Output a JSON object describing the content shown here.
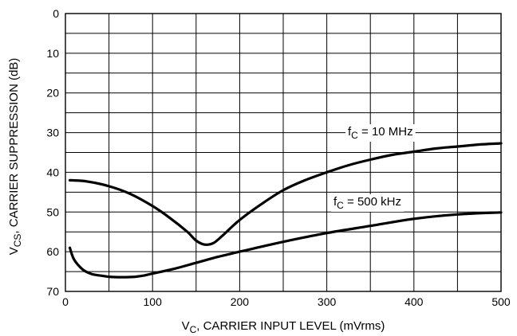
{
  "chart_data": {
    "type": "line",
    "xlabel_main": "V",
    "xlabel_sub": "C",
    "xlabel_rest": ", CARRIER INPUT LEVEL (mVrms)",
    "ylabel_main": "V",
    "ylabel_sub": "CS",
    "ylabel_rest": ", CARRIER SUPPRESSION (dB)",
    "xlim": [
      0,
      500
    ],
    "ylim": [
      0,
      70
    ],
    "y_inverted": true,
    "grid": true,
    "x_ticks": [
      "0",
      "100",
      "200",
      "300",
      "400",
      "500"
    ],
    "y_ticks": [
      "0",
      "10",
      "20",
      "30",
      "40",
      "50",
      "60",
      "70"
    ],
    "series": [
      {
        "label_main": "f",
        "label_sub": "C",
        "label_rest": " = 10 MHz",
        "x": [
          5,
          25,
          50,
          75,
          100,
          120,
          140,
          150,
          160,
          170,
          180,
          200,
          225,
          250,
          275,
          300,
          325,
          350,
          375,
          400,
          425,
          450,
          475,
          500
        ],
        "y": [
          42,
          42.3,
          43.5,
          45.5,
          48.5,
          51.5,
          55,
          57.2,
          58.2,
          57.8,
          56,
          52,
          48,
          44.5,
          42,
          40,
          38.2,
          36.8,
          35.6,
          34.8,
          34,
          33.5,
          33,
          32.7
        ]
      },
      {
        "label_main": "f",
        "label_sub": "C",
        "label_rest": " = 500 kHz",
        "x": [
          5,
          10,
          20,
          30,
          40,
          50,
          60,
          70,
          80,
          90,
          100,
          125,
          150,
          175,
          200,
          250,
          300,
          350,
          400,
          450,
          500
        ],
        "y": [
          59,
          62,
          64.5,
          65.6,
          66,
          66.3,
          66.4,
          66.4,
          66.3,
          66,
          65.5,
          64.3,
          62.8,
          61.3,
          60,
          57.5,
          55.3,
          53.5,
          51.7,
          50.6,
          50.1
        ]
      }
    ]
  }
}
